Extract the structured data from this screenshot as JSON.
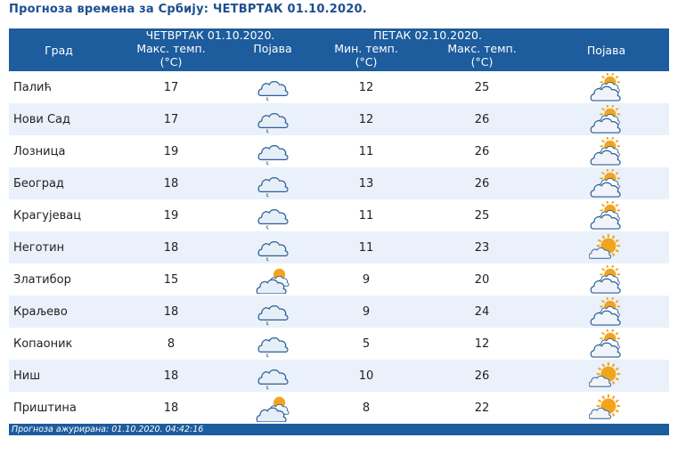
{
  "title": "Прогноза времена за Србију: ЧЕТВРТАК  01.10.2020.",
  "header": {
    "city": "Град",
    "day1": "ЧЕТВРТАК  01.10.2020.",
    "day2": "ПЕТАК  02.10.2020.",
    "max_temp": "Макс. темп.",
    "min_temp": "Мин. темп.",
    "unit": "(°C)",
    "phenomenon": "Појава"
  },
  "rows": [
    {
      "city": "Палић",
      "max1": "17",
      "icon1": "cloud-icon",
      "min2": "12",
      "max2": "25",
      "icon2": "partly-cloudy-icon"
    },
    {
      "city": "Нови Сад",
      "max1": "17",
      "icon1": "cloud-icon",
      "min2": "12",
      "max2": "26",
      "icon2": "partly-cloudy-icon"
    },
    {
      "city": "Лозница",
      "max1": "19",
      "icon1": "cloud-icon",
      "min2": "11",
      "max2": "26",
      "icon2": "partly-cloudy-icon"
    },
    {
      "city": "Београд",
      "max1": "18",
      "icon1": "cloud-icon",
      "min2": "13",
      "max2": "26",
      "icon2": "partly-cloudy-icon"
    },
    {
      "city": "Крагујевац",
      "max1": "19",
      "icon1": "cloud-icon",
      "min2": "11",
      "max2": "25",
      "icon2": "partly-cloudy-icon"
    },
    {
      "city": "Неготин",
      "max1": "18",
      "icon1": "cloud-icon",
      "min2": "11",
      "max2": "23",
      "icon2": "mostly-sunny-icon"
    },
    {
      "city": "Златибор",
      "max1": "15",
      "icon1": "cloudy-sun-icon",
      "min2": "9",
      "max2": "20",
      "icon2": "partly-cloudy-icon"
    },
    {
      "city": "Краљево",
      "max1": "18",
      "icon1": "cloud-icon",
      "min2": "9",
      "max2": "24",
      "icon2": "partly-cloudy-icon"
    },
    {
      "city": "Копаоник",
      "max1": "8",
      "icon1": "cloud-icon",
      "min2": "5",
      "max2": "12",
      "icon2": "partly-cloudy-icon"
    },
    {
      "city": "Ниш",
      "max1": "18",
      "icon1": "cloud-icon",
      "min2": "10",
      "max2": "26",
      "icon2": "mostly-sunny-icon"
    },
    {
      "city": "Приштина",
      "max1": "18",
      "icon1": "cloudy-sun-icon",
      "min2": "8",
      "max2": "22",
      "icon2": "mostly-sunny-icon"
    }
  ],
  "footer": "Прогноза ажурирана:  01.10.2020. 04:42:16",
  "colors": {
    "header_bg": "#1d5c9d",
    "title": "#1d4f90",
    "row_alt": "#eaf1fa",
    "sun": "#f2a51c",
    "cloud_blue": "#2a5f96"
  }
}
